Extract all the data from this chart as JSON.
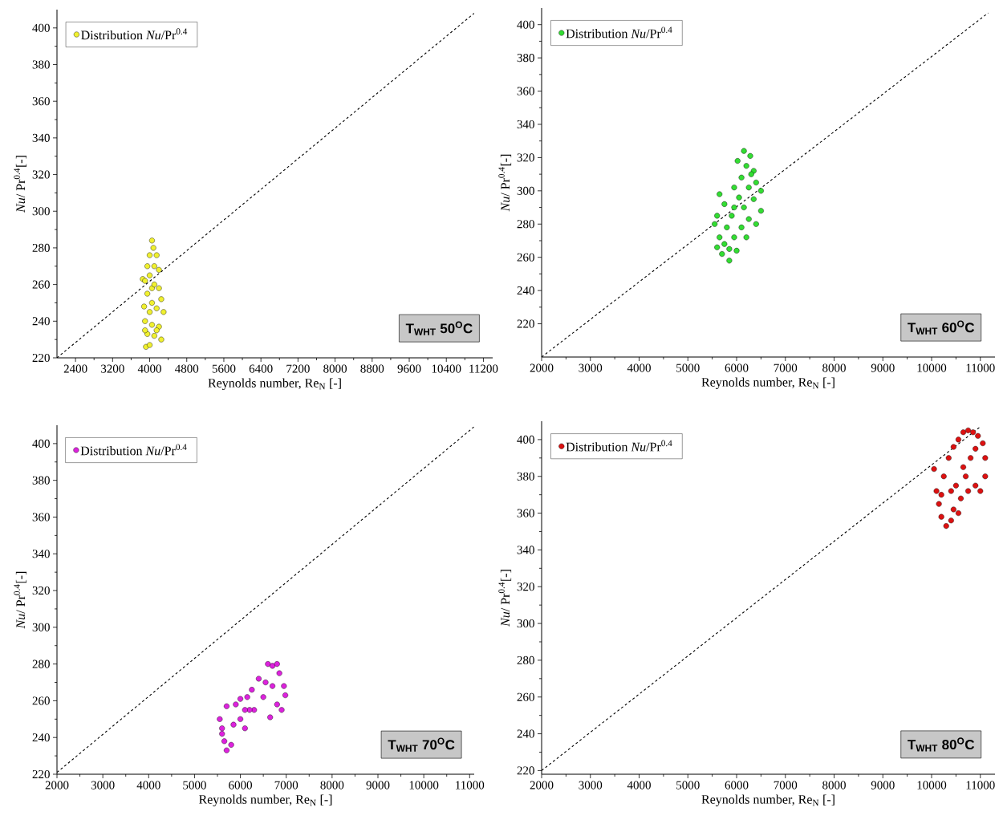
{
  "chart_data": [
    {
      "type": "scatter",
      "xlabel": "Reynolds number, Re$_{N}$ [-]",
      "ylabel": "*Nu*/ Pr$^{0.4}$[-]",
      "xlim": [
        2000,
        11400
      ],
      "ylim": [
        220,
        410
      ],
      "xticks": [
        2400,
        3200,
        4000,
        4800,
        5600,
        6400,
        7200,
        8000,
        8800,
        9600,
        10400,
        11200
      ],
      "yticks": [
        220,
        240,
        260,
        280,
        300,
        320,
        340,
        360,
        380,
        400
      ],
      "legend": "top left",
      "marker": "circle",
      "annotations": [
        "T$_{WHT}$ 50$^{O}$C"
      ],
      "series": [
        {
          "name": "Distribution *Nu*/Pr$^{0.4}$",
          "color": "#f0f030",
          "x": [
            4050,
            4080,
            4000,
            4150,
            3850,
            3900,
            4100,
            4200,
            3950,
            4050,
            4250,
            3880,
            4000,
            4150,
            4300,
            3900,
            4050,
            4200,
            3950,
            4100,
            4250,
            3920,
            4000,
            4150,
            4000,
            4100,
            3950,
            4200,
            4050,
            3900
          ],
          "values": [
            284,
            280,
            276,
            276,
            263,
            262,
            270,
            268,
            255,
            258,
            252,
            248,
            245,
            247,
            245,
            240,
            238,
            237,
            233,
            232,
            230,
            226,
            227,
            235,
            265,
            260,
            270,
            258,
            250,
            235
          ]
        },
        {
          "type": "line",
          "color": "#000000",
          "line_style": "dashed",
          "marker": "none",
          "x": [
            2000,
            11000
          ],
          "values": [
            220,
            408
          ]
        }
      ]
    },
    {
      "type": "scatter",
      "xlabel": "Reynolds number, Re$_{N}$ [-]",
      "ylabel": "*Nu*/ Pr$^{0.4}$[-]",
      "xlim": [
        2000,
        11300
      ],
      "ylim": [
        200,
        410
      ],
      "xticks": [
        2000,
        3000,
        4000,
        5000,
        6000,
        7000,
        8000,
        9000,
        10000,
        11000
      ],
      "yticks": [
        220,
        240,
        260,
        280,
        300,
        320,
        340,
        360,
        380,
        400
      ],
      "legend": "top left",
      "marker": "circle",
      "annotations": [
        "T$_{WHT}$ 60$^{O}$C"
      ],
      "series": [
        {
          "name": "Distribution *Nu*/Pr$^{0.4}$",
          "color": "#33dd33",
          "x": [
            6150,
            6280,
            6020,
            6200,
            6350,
            6100,
            6400,
            5950,
            6250,
            6500,
            5650,
            6050,
            6350,
            5750,
            6150,
            6500,
            5600,
            5900,
            6250,
            5550,
            5800,
            6100,
            6400,
            5650,
            5950,
            6200,
            5600,
            5850,
            6000,
            5700,
            5850,
            5750,
            6300,
            5950
          ],
          "values": [
            324,
            321,
            318,
            315,
            312,
            308,
            305,
            302,
            302,
            300,
            298,
            296,
            295,
            292,
            290,
            288,
            285,
            285,
            283,
            280,
            278,
            278,
            280,
            272,
            272,
            272,
            266,
            265,
            264,
            262,
            258,
            268,
            310,
            290
          ]
        },
        {
          "type": "line",
          "color": "#000000",
          "line_style": "dashed",
          "marker": "none",
          "x": [
            2000,
            11160
          ],
          "values": [
            200,
            407
          ]
        }
      ]
    },
    {
      "type": "scatter",
      "xlabel": "Reynolds number, Re$_{N}$ [-]",
      "ylabel": "*Nu*/ Pr$^{0.4}$[-]",
      "xlim": [
        2000,
        11100
      ],
      "ylim": [
        220,
        410
      ],
      "xticks": [
        2000,
        3000,
        4000,
        5000,
        6000,
        7000,
        8000,
        9000,
        10000,
        11000
      ],
      "yticks": [
        220,
        240,
        260,
        280,
        300,
        320,
        340,
        360,
        380,
        400
      ],
      "legend": "top left",
      "marker": "circle",
      "annotations": [
        "T$_{WHT}$ 70$^{O}$C"
      ],
      "series": [
        {
          "name": "Distribution *Nu*/Pr$^{0.4}$",
          "color": "#dd22dd",
          "x": [
            5550,
            5600,
            5650,
            5700,
            5800,
            5700,
            5850,
            5900,
            6000,
            6000,
            6100,
            6150,
            6250,
            6300,
            6400,
            6500,
            6600,
            6700,
            6800,
            6850,
            6950,
            6980,
            6900,
            6800,
            6650,
            6700,
            6550,
            6200,
            5600,
            6100
          ],
          "values": [
            250,
            245,
            238,
            233,
            236,
            257,
            247,
            258,
            250,
            261,
            245,
            262,
            266,
            255,
            272,
            262,
            280,
            279,
            280,
            275,
            268,
            263,
            255,
            258,
            251,
            268,
            270,
            255,
            242,
            255
          ]
        },
        {
          "type": "line",
          "color": "#000000",
          "line_style": "dashed",
          "marker": "none",
          "x": [
            2000,
            11090
          ],
          "values": [
            221,
            409
          ]
        }
      ]
    },
    {
      "type": "scatter",
      "xlabel": "Reynolds number, Re$_{N}$ [-]",
      "ylabel": "*Nu*/ Pr$^{0.4}$[-]",
      "xlim": [
        2000,
        11300
      ],
      "ylim": [
        218,
        410
      ],
      "xticks": [
        2000,
        3000,
        4000,
        5000,
        6000,
        7000,
        8000,
        9000,
        10000,
        11000
      ],
      "yticks": [
        220,
        240,
        260,
        280,
        300,
        320,
        340,
        360,
        380,
        400
      ],
      "legend": "top left",
      "marker": "circle",
      "annotations": [
        "T$_{WHT}$ 80$^{O}$C"
      ],
      "series": [
        {
          "name": "Distribution *Nu*/Pr$^{0.4}$",
          "color": "#dd1111",
          "x": [
            10050,
            10100,
            10150,
            10200,
            10300,
            10400,
            10450,
            10250,
            10350,
            10450,
            10550,
            10650,
            10750,
            10850,
            10950,
            11050,
            11100,
            11100,
            11000,
            10900,
            10750,
            10600,
            10500,
            10650,
            10800,
            10400,
            10550,
            10900,
            10200,
            10700
          ],
          "values": [
            384,
            372,
            365,
            358,
            353,
            356,
            362,
            380,
            390,
            396,
            400,
            404,
            405,
            404,
            402,
            398,
            390,
            380,
            372,
            375,
            372,
            368,
            375,
            385,
            390,
            372,
            360,
            395,
            370,
            380
          ]
        },
        {
          "type": "line",
          "color": "#000000",
          "line_style": "dashed",
          "marker": "none",
          "x": [
            2000,
            11000
          ],
          "values": [
            220,
            407
          ]
        }
      ]
    }
  ]
}
